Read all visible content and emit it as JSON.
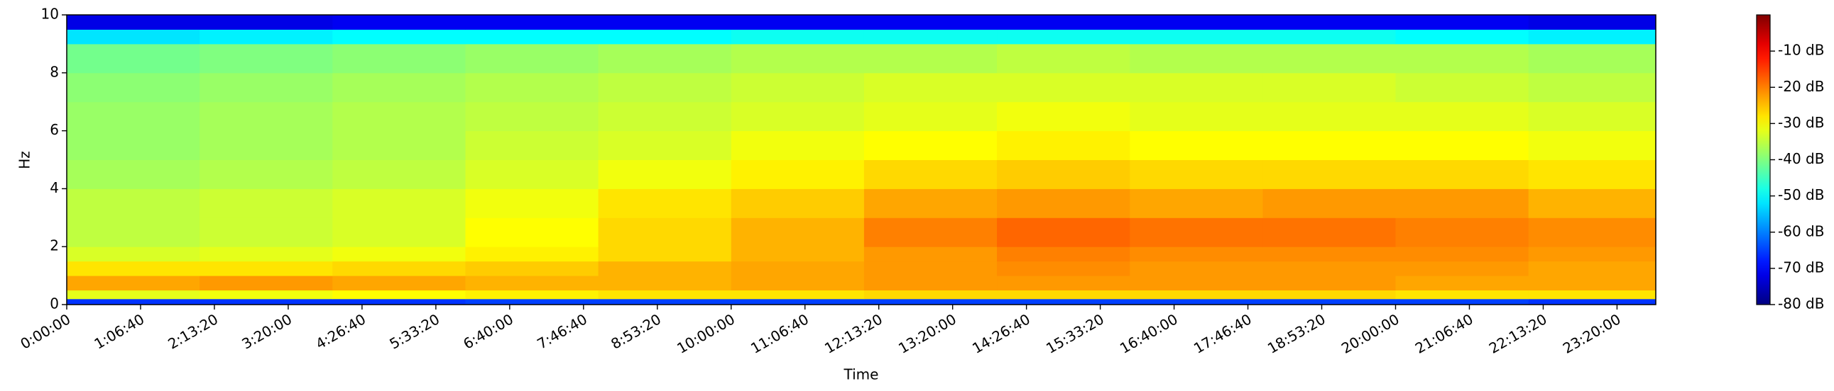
{
  "chart_data": {
    "type": "heatmap",
    "colormap": "jet",
    "xlabel": "Time",
    "ylabel": "Hz",
    "xlim": [
      0,
      86100
    ],
    "ylim": [
      0,
      10
    ],
    "clim": [
      -80,
      0
    ],
    "xbins": [
      0,
      7200,
      14400,
      21600,
      28800,
      36000,
      43200,
      50400,
      57600,
      64800,
      72000,
      79200,
      86100
    ],
    "ybins": [
      0,
      0.2,
      0.5,
      1,
      1.5,
      2,
      3,
      4,
      5,
      6,
      7,
      8,
      9,
      9.5,
      10
    ],
    "values": [
      [
        -66,
        -66,
        -66,
        -65,
        -65,
        -65,
        -65,
        -65,
        -65,
        -65,
        -65,
        -66
      ],
      [
        -32,
        -31,
        -30,
        -29,
        -28,
        -28,
        -27,
        -27,
        -27,
        -27,
        -28,
        -28
      ],
      [
        -23,
        -22,
        -23,
        -24,
        -24,
        -23,
        -22,
        -22,
        -22,
        -22,
        -23,
        -23
      ],
      [
        -28,
        -28,
        -27,
        -26,
        -24,
        -23,
        -22,
        -21,
        -22,
        -22,
        -22,
        -23
      ],
      [
        -33,
        -32,
        -31,
        -29,
        -27,
        -24,
        -22,
        -20,
        -21,
        -21,
        -21,
        -22
      ],
      [
        -35,
        -34,
        -33,
        -30,
        -27,
        -24,
        -20,
        -18,
        -19,
        -19,
        -20,
        -21
      ],
      [
        -35,
        -34,
        -33,
        -31,
        -28,
        -26,
        -23,
        -22,
        -23,
        -22,
        -22,
        -24
      ],
      [
        -37,
        -36,
        -35,
        -33,
        -31,
        -29,
        -27,
        -26,
        -27,
        -27,
        -27,
        -28
      ],
      [
        -38,
        -37,
        -36,
        -34,
        -33,
        -31,
        -30,
        -29,
        -30,
        -30,
        -30,
        -31
      ],
      [
        -38,
        -37,
        -36,
        -35,
        -34,
        -33,
        -32,
        -31,
        -32,
        -32,
        -32,
        -33
      ],
      [
        -39,
        -38,
        -37,
        -36,
        -35,
        -34,
        -33,
        -33,
        -33,
        -33,
        -34,
        -35
      ],
      [
        -41,
        -40,
        -39,
        -38,
        -37,
        -36,
        -36,
        -35,
        -36,
        -36,
        -36,
        -37
      ],
      [
        -52,
        -51,
        -50,
        -50,
        -50,
        -49,
        -49,
        -49,
        -49,
        -49,
        -50,
        -51
      ],
      [
        -72,
        -72,
        -71,
        -71,
        -71,
        -71,
        -71,
        -71,
        -71,
        -71,
        -71,
        -72
      ]
    ],
    "xticks": [
      {
        "value": 0,
        "label": "0:00:00"
      },
      {
        "value": 4000,
        "label": "1:06:40"
      },
      {
        "value": 8000,
        "label": "2:13:20"
      },
      {
        "value": 12000,
        "label": "3:20:00"
      },
      {
        "value": 16000,
        "label": "4:26:40"
      },
      {
        "value": 20000,
        "label": "5:33:20"
      },
      {
        "value": 24000,
        "label": "6:40:00"
      },
      {
        "value": 28000,
        "label": "7:46:40"
      },
      {
        "value": 32000,
        "label": "8:53:20"
      },
      {
        "value": 36000,
        "label": "10:00:00"
      },
      {
        "value": 40000,
        "label": "11:06:40"
      },
      {
        "value": 44000,
        "label": "12:13:20"
      },
      {
        "value": 48000,
        "label": "13:20:00"
      },
      {
        "value": 52000,
        "label": "14:26:40"
      },
      {
        "value": 56000,
        "label": "15:33:20"
      },
      {
        "value": 60000,
        "label": "16:40:00"
      },
      {
        "value": 64000,
        "label": "17:46:40"
      },
      {
        "value": 68000,
        "label": "18:53:20"
      },
      {
        "value": 72000,
        "label": "20:00:00"
      },
      {
        "value": 76000,
        "label": "21:06:40"
      },
      {
        "value": 80000,
        "label": "22:13:20"
      },
      {
        "value": 84000,
        "label": "23:20:00"
      }
    ],
    "yticks": [
      0,
      2,
      4,
      6,
      8,
      10
    ],
    "cticks": [
      {
        "value": -10,
        "label": "-10 dB"
      },
      {
        "value": -20,
        "label": "-20 dB"
      },
      {
        "value": -30,
        "label": "-30 dB"
      },
      {
        "value": -40,
        "label": "-40 dB"
      },
      {
        "value": -50,
        "label": "-50 dB"
      },
      {
        "value": -60,
        "label": "-60 dB"
      },
      {
        "value": -70,
        "label": "-70 dB"
      },
      {
        "value": -80,
        "label": "-80 dB"
      }
    ]
  }
}
